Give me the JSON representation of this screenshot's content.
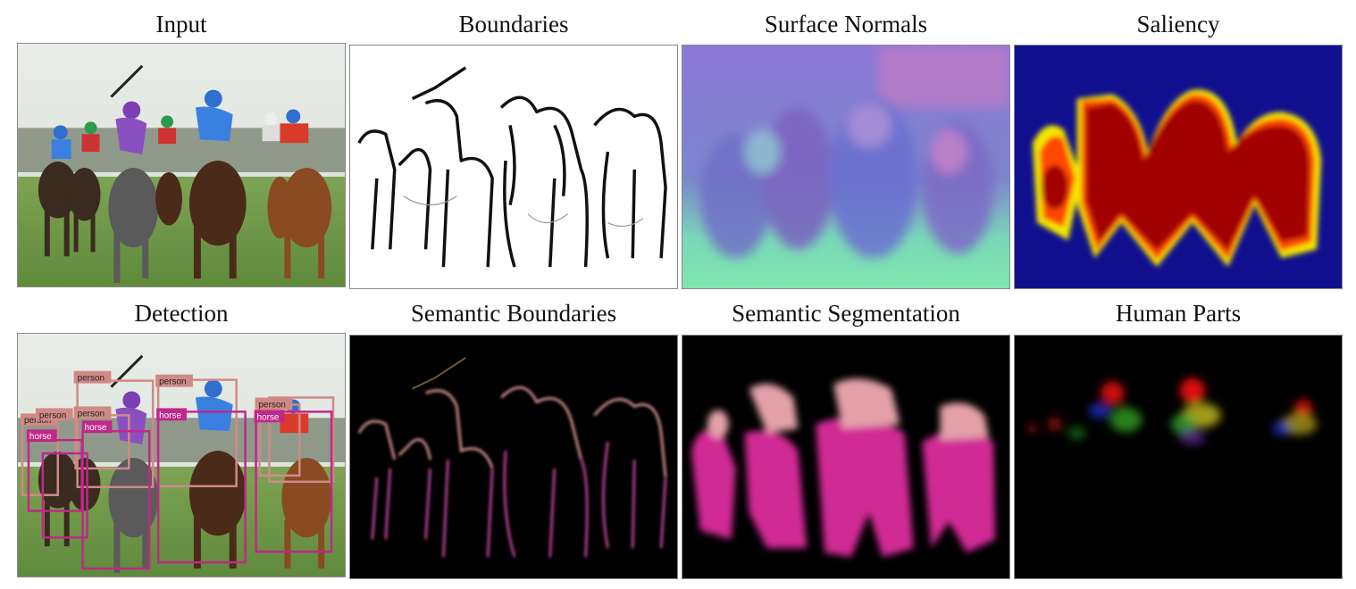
{
  "figure": {
    "panels": [
      {
        "id": "input",
        "caption": "Input"
      },
      {
        "id": "boundaries",
        "caption": "Boundaries"
      },
      {
        "id": "normals",
        "caption": "Surface Normals"
      },
      {
        "id": "saliency",
        "caption": "Saliency"
      },
      {
        "id": "detection",
        "caption": "Detection"
      },
      {
        "id": "semantic-boundaries",
        "caption": "Semantic Boundaries"
      },
      {
        "id": "semantic-segmentation",
        "caption": "Semantic Segmentation"
      },
      {
        "id": "human-parts",
        "caption": "Human Parts"
      }
    ],
    "detection_labels": {
      "person": "person",
      "horse": "horse"
    },
    "colors": {
      "person_box": "#d08a86",
      "horse_box": "#c0288a",
      "seg_person": "#e3a0a8",
      "seg_horse": "#d02a94",
      "saliency_bg": "#10108f",
      "saliency_fg": "#a30000"
    }
  }
}
